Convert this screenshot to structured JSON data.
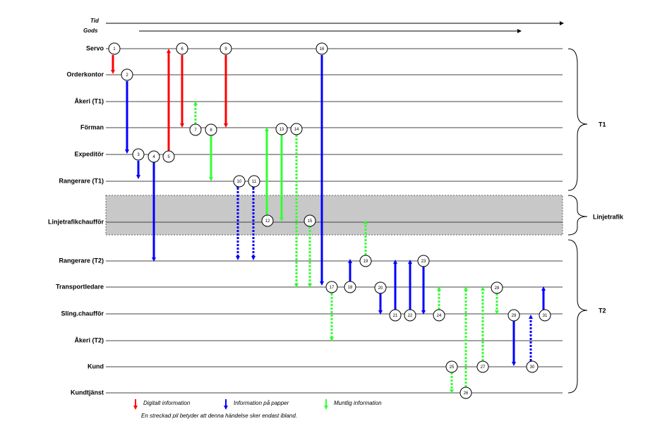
{
  "header": {
    "time": "Tid",
    "goods": "Gods"
  },
  "lanes": [
    "Servo",
    "Orderkontor",
    "Åkeri (T1)",
    "Förman",
    "Expeditör",
    "Rangerare (T1)",
    "Linjetrafikchaufför",
    "Rangerare (T2)",
    "Transportledare",
    "Sling.chaufför",
    "Åkeri (T2)",
    "Kund",
    "Kundtjänst"
  ],
  "groups": [
    "T1",
    "Linjetrafik",
    "T2"
  ],
  "nodes": [
    "1",
    "2",
    "3",
    "4",
    "5",
    "6",
    "7",
    "8",
    "9",
    "10",
    "11",
    "12",
    "13",
    "14",
    "15",
    "16",
    "17",
    "18",
    "19",
    "20",
    "21",
    "22",
    "23",
    "24",
    "25",
    "26",
    "27",
    "28",
    "29",
    "30",
    "31"
  ],
  "legend": [
    "Digitalt information",
    "Information på papper",
    "Muntlig information"
  ],
  "note": "En streckad pil betyder att denna händelse sker endast ibland."
}
